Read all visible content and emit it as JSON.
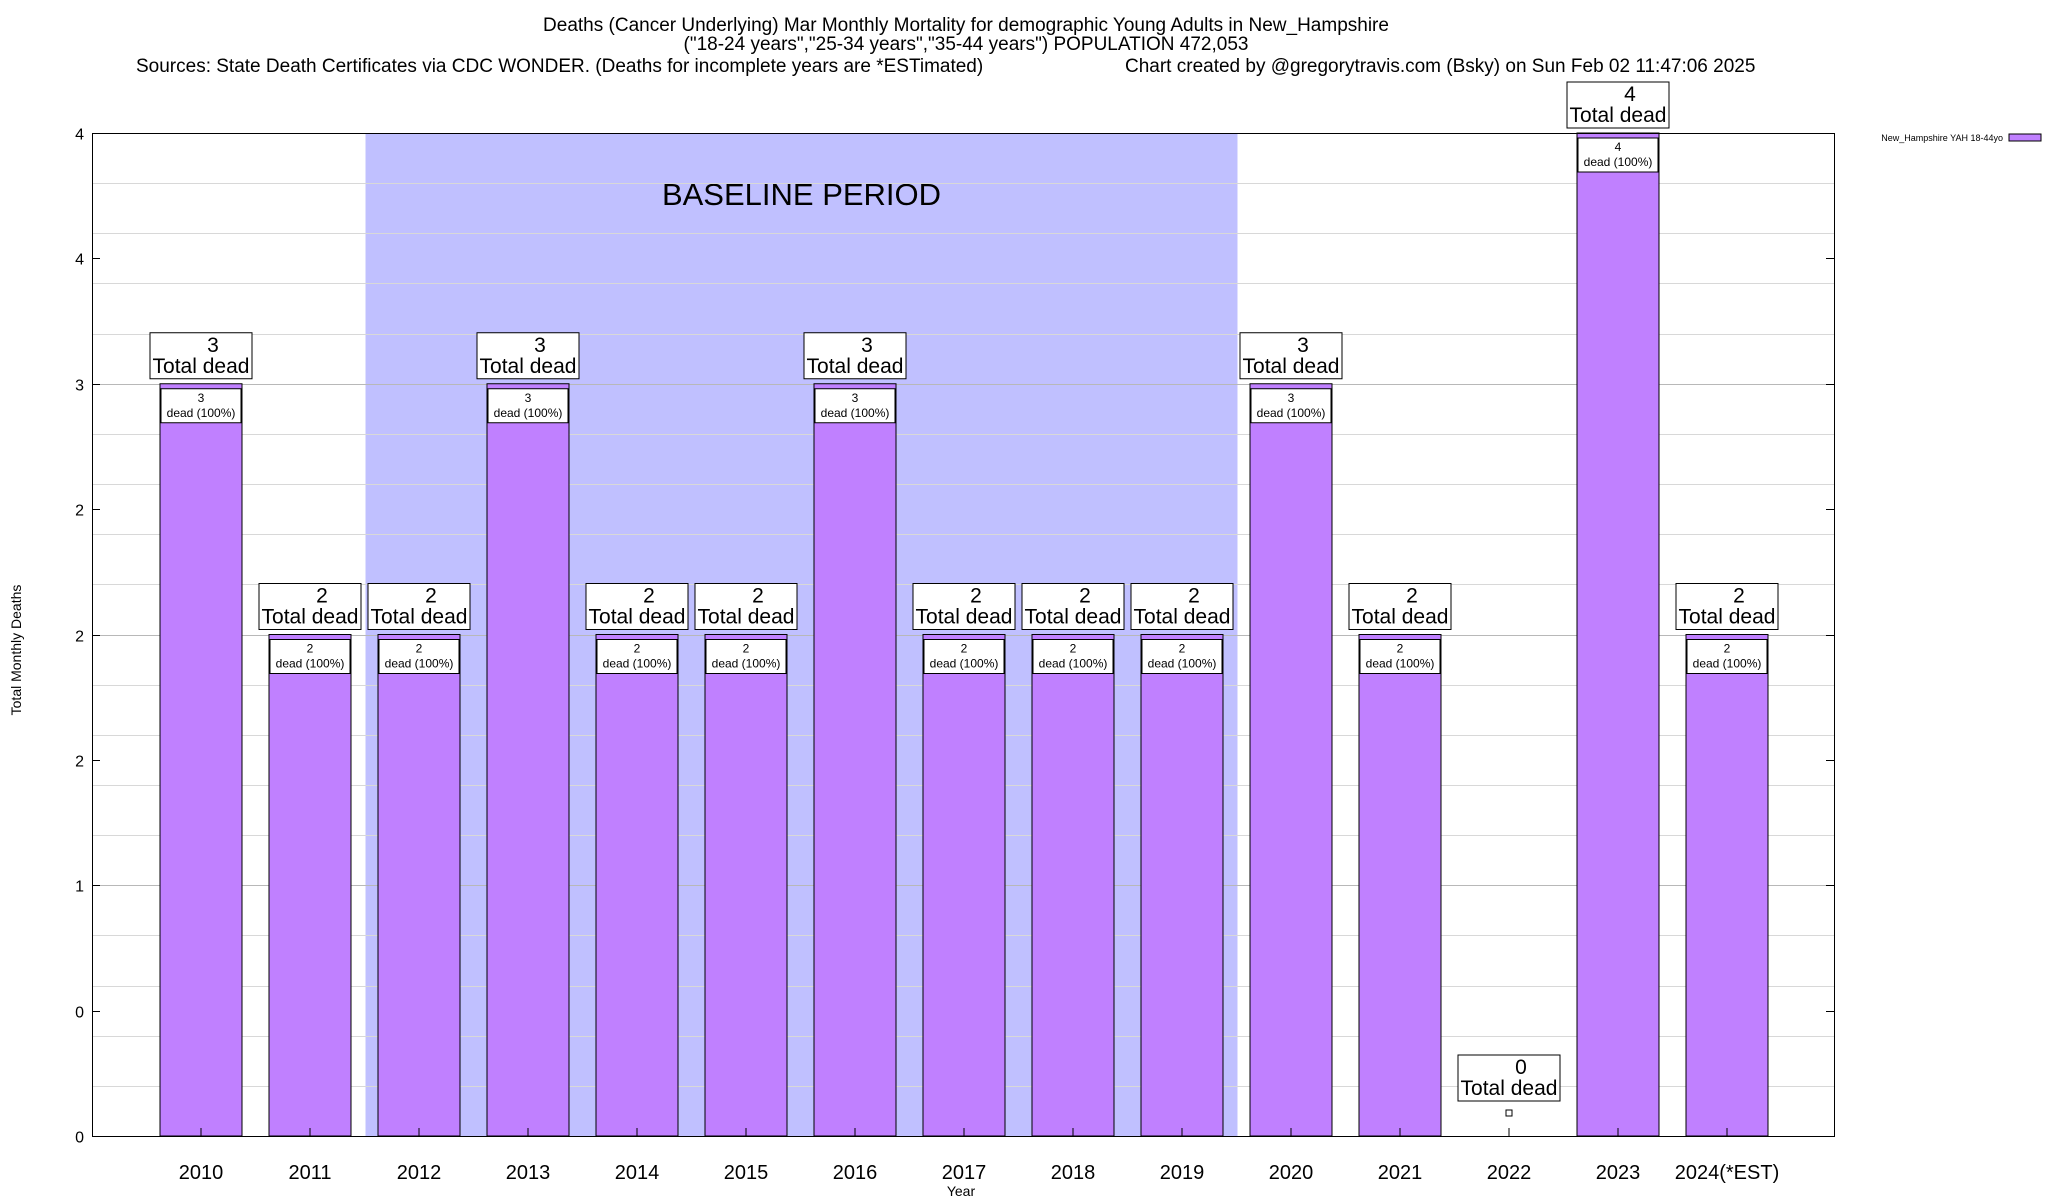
{
  "chart_data": {
    "type": "bar",
    "title": "Deaths (Cancer Underlying) Mar Monthly Mortality for demographic Young Adults in New_Hampshire",
    "subtitle": "(\"18-24 years\",\"25-34 years\",\"35-44 years\") POPULATION 472,053",
    "sources": "Sources: State Death Certificates via CDC WONDER. (Deaths for incomplete years are *ESTimated)",
    "credit": "Chart created by @gregorytravis.com (Bsky) on Sun Feb 02 11:47:06 2025",
    "xlabel": "Year",
    "ylabel": "Total Monthly Deaths",
    "categories": [
      "2010",
      "2011",
      "2012",
      "2013",
      "2014",
      "2015",
      "2016",
      "2017",
      "2018",
      "2019",
      "2020",
      "2021",
      "2022",
      "2023",
      "2024(*EST)"
    ],
    "series": [
      {
        "name": "New_Hampshire YAH 18-44yo",
        "values": [
          3,
          2,
          2,
          3,
          2,
          2,
          3,
          2,
          2,
          2,
          3,
          2,
          0,
          4,
          2
        ]
      }
    ],
    "ylim": [
      0,
      4
    ],
    "y_tick_labels": [
      "0",
      "0",
      "1",
      "2",
      "2",
      "2",
      "3",
      "4",
      "4"
    ],
    "total_label_suffix": "Total dead",
    "inner_label_suffix": "dead (100%)",
    "baseline": {
      "label": "BASELINE PERIOD",
      "from": "2012",
      "to": "2019"
    },
    "grid": true,
    "legend_position": "top-right",
    "colors": {
      "bar": "#c080ff",
      "baseline": "#c0c0ff",
      "grid": "#c8c8c8"
    }
  }
}
